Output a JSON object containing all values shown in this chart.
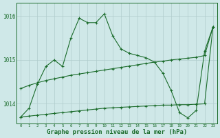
{
  "bg_color": "#cfe8e8",
  "grid_color": "#b0cccc",
  "line_color": "#1a6b2a",
  "xlabel": "Graphe pression niveau de la mer (hPa)",
  "xlabel_fontsize": 6.5,
  "ylabel_labels": [
    "1014",
    "1015",
    "1016"
  ],
  "ylim": [
    1013.55,
    1016.3
  ],
  "xlim": [
    -0.5,
    23.5
  ],
  "xticks": [
    0,
    1,
    2,
    3,
    4,
    5,
    6,
    7,
    8,
    9,
    10,
    11,
    12,
    13,
    14,
    15,
    16,
    17,
    18,
    19,
    20,
    21,
    22,
    23
  ],
  "yticks": [
    1014,
    1015,
    1016
  ],
  "s1": [
    1013.7,
    1013.9,
    1014.45,
    1014.85,
    1015.0,
    1014.85,
    1015.5,
    1015.95,
    1015.85,
    1015.85,
    1016.05,
    1015.55,
    1015.25,
    1015.15,
    1015.1,
    1015.05,
    1014.95,
    1014.7,
    1014.3,
    1013.8,
    1013.68,
    1013.85,
    1015.2,
    1015.75
  ],
  "s2": [
    1014.35,
    1014.42,
    1014.48,
    1014.53,
    1014.57,
    1014.61,
    1014.65,
    1014.68,
    1014.71,
    1014.74,
    1014.77,
    1014.8,
    1014.83,
    1014.86,
    1014.89,
    1014.92,
    1014.95,
    1014.97,
    1015.0,
    1015.02,
    1015.04,
    1015.06,
    1015.1,
    1015.75
  ],
  "s3": [
    1013.7,
    1013.72,
    1013.74,
    1013.76,
    1013.78,
    1013.8,
    1013.82,
    1013.84,
    1013.86,
    1013.88,
    1013.9,
    1013.91,
    1013.92,
    1013.93,
    1013.94,
    1013.95,
    1013.96,
    1013.97,
    1013.97,
    1013.98,
    1013.98,
    1013.99,
    1014.0,
    1015.75
  ]
}
